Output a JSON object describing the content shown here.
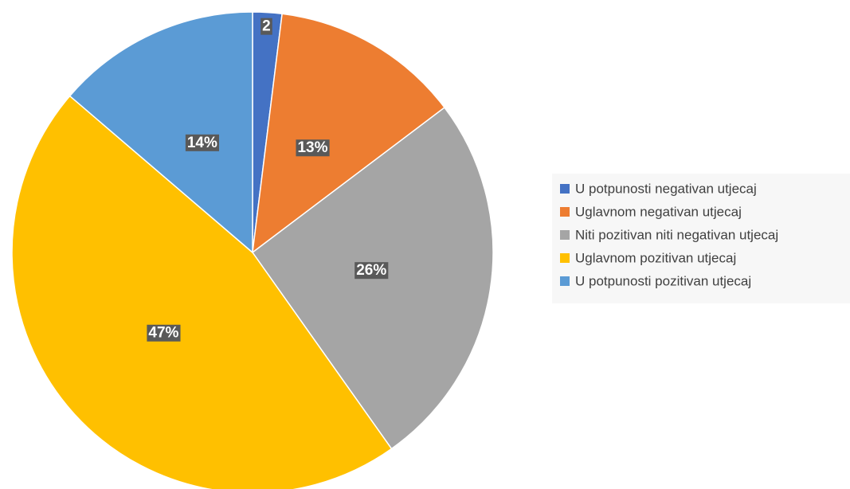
{
  "chart_data": {
    "type": "pie",
    "categories": [
      "U potpunosti negativan utjecaj",
      "Uglavnom negativan utjecaj",
      "Niti pozitivan niti negativan utjecaj",
      "Uglavnom pozitivan utjecaj",
      "U potpunosti pozitivan utjecaj"
    ],
    "values": [
      2,
      13,
      26,
      47,
      14
    ],
    "value_labels": [
      "2",
      "13%",
      "26%",
      "47%",
      "14%"
    ],
    "colors": [
      "#4472c4",
      "#ed7d31",
      "#a5a5a5",
      "#ffc000",
      "#5b9bd5"
    ],
    "legend": "right"
  }
}
